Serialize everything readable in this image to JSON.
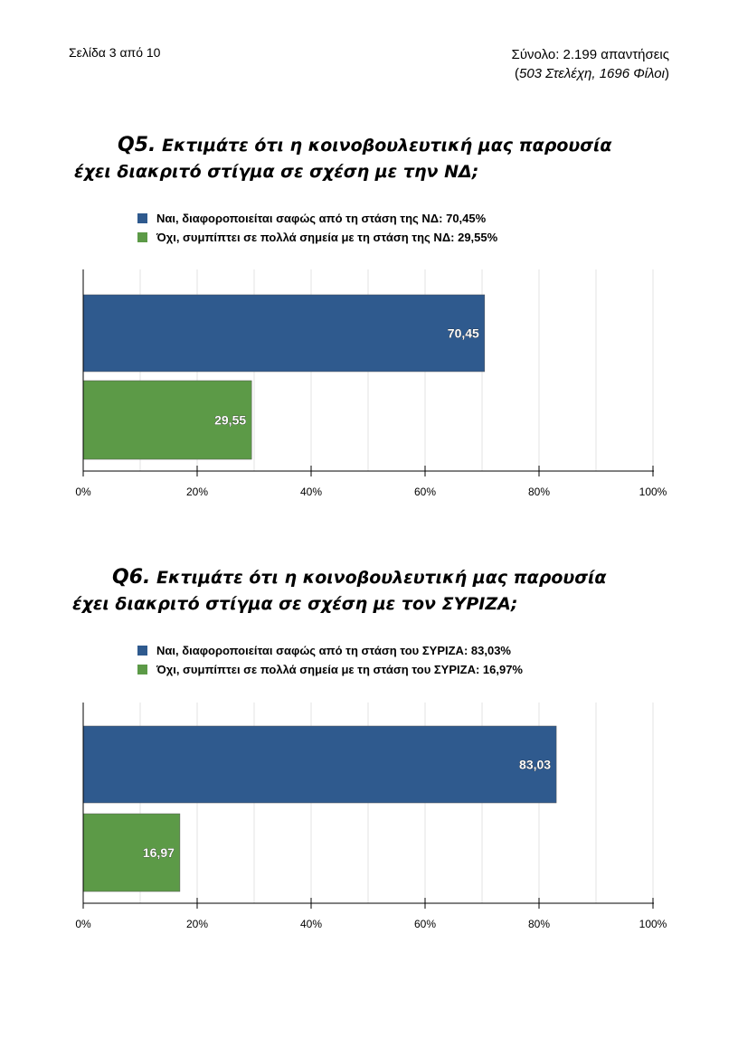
{
  "header": {
    "page_label": "Σελίδα 3 από 10",
    "total_line": "Σύνολο: 2.199 απαντήσεις",
    "breakdown_open": "(",
    "breakdown_text": "503 Στελέχη, 1696 Φίλοι",
    "breakdown_close": ")"
  },
  "colors": {
    "series1": "#2f5a8e",
    "series2": "#5c9a47",
    "grid": "#e3e3e3",
    "axis": "#000000"
  },
  "questions": [
    {
      "qnum": "Q5.",
      "title_line1": "Εκτιμάτε ότι η κοινοβουλευτική μας παρουσία",
      "title_line2": "έχει διακριτό στίγμα σε σχέση με την ΝΔ;",
      "legend": [
        "Ναι, διαφοροποιείται σαφώς από τη στάση της ΝΔ: 70,45%",
        "Όχι, συμπίπτει σε πολλά σημεία με τη στάση της ΝΔ: 29,55%"
      ]
    },
    {
      "qnum": "Q6.",
      "title_line1": "Εκτιμάτε ότι η κοινοβουλευτική μας παρουσία",
      "title_line2": "έχει διακριτό στίγμα σε σχέση με τον ΣΥΡΙΖΑ;",
      "legend": [
        "Ναι, διαφοροποιείται σαφώς από τη στάση του ΣΥΡΙΖΑ: 83,03%",
        "Όχι, συμπίπτει σε πολλά σημεία με τη στάση του ΣΥΡΙΖΑ: 16,97%"
      ]
    }
  ],
  "chart_data": [
    {
      "type": "bar",
      "orientation": "horizontal",
      "series": [
        {
          "values": [
            70.45
          ],
          "labels": [
            "70,45"
          ],
          "color": "#2f5a8e"
        },
        {
          "values": [
            29.55
          ],
          "labels": [
            "29,55"
          ],
          "color": "#5c9a47"
        }
      ],
      "xlim": [
        0,
        100
      ],
      "xticks": [
        0,
        20,
        40,
        60,
        80,
        100
      ],
      "xtick_labels": [
        "0%",
        "20%",
        "40%",
        "60%",
        "80%",
        "100%"
      ],
      "grid": true,
      "legend_position": "top"
    },
    {
      "type": "bar",
      "orientation": "horizontal",
      "series": [
        {
          "values": [
            83.03
          ],
          "labels": [
            "83,03"
          ],
          "color": "#2f5a8e"
        },
        {
          "values": [
            16.97
          ],
          "labels": [
            "16,97"
          ],
          "color": "#5c9a47"
        }
      ],
      "xlim": [
        0,
        100
      ],
      "xticks": [
        0,
        20,
        40,
        60,
        80,
        100
      ],
      "xtick_labels": [
        "0%",
        "20%",
        "40%",
        "60%",
        "80%",
        "100%"
      ],
      "grid": true,
      "legend_position": "top"
    }
  ]
}
